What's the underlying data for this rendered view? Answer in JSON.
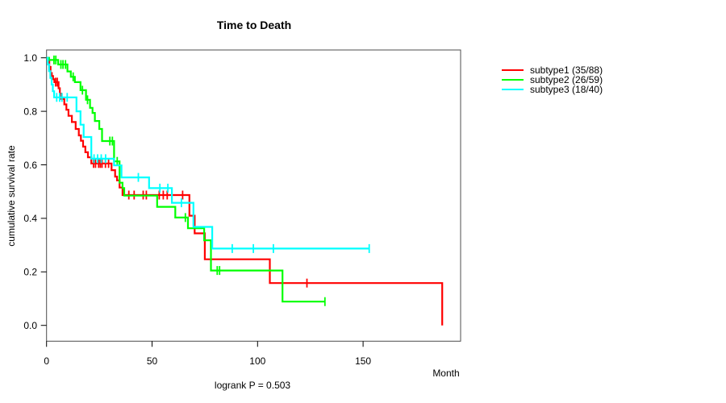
{
  "page": {
    "background": "#ffffff"
  },
  "chart_data": {
    "type": "line",
    "variant": "kaplan-meier-step",
    "title": "Time to Death",
    "xlabel": "Month",
    "ylabel": "cumulative survival rate",
    "annotation": "logrank P = 0.503",
    "x_ticks": [
      0,
      50,
      100,
      150
    ],
    "y_tick_labels": [
      "0.0",
      "0.2",
      "0.4",
      "0.6",
      "0.8",
      "1.0"
    ],
    "xlim": [
      0,
      196
    ],
    "ylim": [
      0,
      1
    ],
    "grid": false,
    "legend_position": "right-outside",
    "series": [
      {
        "name": "subtype1 (35/88)",
        "color": "#ff0000",
        "points": [
          [
            0,
            1
          ],
          [
            0.8,
            0.989
          ],
          [
            1.3,
            0.966
          ],
          [
            1.9,
            0.943
          ],
          [
            2.5,
            0.932
          ],
          [
            3.1,
            0.92
          ],
          [
            3.7,
            0.909
          ],
          [
            5.7,
            0.886
          ],
          [
            6.3,
            0.866
          ],
          [
            7,
            0.846
          ],
          [
            8.4,
            0.826
          ],
          [
            9.4,
            0.806
          ],
          [
            10.4,
            0.783
          ],
          [
            12,
            0.76
          ],
          [
            13.8,
            0.734
          ],
          [
            15.3,
            0.71
          ],
          [
            16.3,
            0.69
          ],
          [
            17.3,
            0.668
          ],
          [
            18.4,
            0.647
          ],
          [
            19.6,
            0.628
          ],
          [
            21.2,
            0.605
          ],
          [
            30.8,
            0.58
          ],
          [
            32.5,
            0.556
          ],
          [
            33.4,
            0.542
          ],
          [
            34.6,
            0.515
          ],
          [
            36,
            0.487
          ],
          [
            67.7,
            0.41
          ],
          [
            70.2,
            0.344
          ],
          [
            75,
            0.247
          ],
          [
            105.8,
            0.158
          ],
          [
            187.5,
            0
          ]
        ],
        "censor_ticks": [
          [
            4.3,
            0.909
          ],
          [
            5.1,
            0.909
          ],
          [
            22.3,
            0.605
          ],
          [
            23.2,
            0.605
          ],
          [
            24.7,
            0.605
          ],
          [
            25.5,
            0.605
          ],
          [
            26.3,
            0.605
          ],
          [
            27.9,
            0.605
          ],
          [
            29.4,
            0.605
          ],
          [
            39,
            0.487
          ],
          [
            41.5,
            0.487
          ],
          [
            45.8,
            0.487
          ],
          [
            47.3,
            0.487
          ],
          [
            53.4,
            0.487
          ],
          [
            55.3,
            0.487
          ],
          [
            57.2,
            0.487
          ],
          [
            64.5,
            0.487
          ],
          [
            123.4,
            0.158
          ]
        ],
        "end_month": 187.5
      },
      {
        "name": "subtype2 (26/59)",
        "color": "#00ff00",
        "points": [
          [
            0,
            1
          ],
          [
            1.2,
            0.992
          ],
          [
            5.5,
            0.975
          ],
          [
            9.9,
            0.949
          ],
          [
            11.5,
            0.929
          ],
          [
            13.4,
            0.909
          ],
          [
            16.1,
            0.879
          ],
          [
            18.7,
            0.843
          ],
          [
            20.6,
            0.813
          ],
          [
            21.8,
            0.794
          ],
          [
            22.9,
            0.764
          ],
          [
            25,
            0.734
          ],
          [
            26.3,
            0.689
          ],
          [
            32,
            0.613
          ],
          [
            34.6,
            0.533
          ],
          [
            36,
            0.513
          ],
          [
            36.8,
            0.485
          ],
          [
            52.4,
            0.443
          ],
          [
            61,
            0.403
          ],
          [
            67,
            0.363
          ],
          [
            74.7,
            0.318
          ],
          [
            77.9,
            0.205
          ],
          [
            111.8,
            0.089
          ]
        ],
        "censor_ticks": [
          [
            3.5,
            0.992
          ],
          [
            4.4,
            0.992
          ],
          [
            6.8,
            0.975
          ],
          [
            7.8,
            0.975
          ],
          [
            9,
            0.975
          ],
          [
            12.6,
            0.929
          ],
          [
            17,
            0.879
          ],
          [
            19.4,
            0.843
          ],
          [
            30,
            0.689
          ],
          [
            31.2,
            0.689
          ],
          [
            33.5,
            0.613
          ],
          [
            65.8,
            0.403
          ],
          [
            80.9,
            0.205
          ],
          [
            82,
            0.205
          ],
          [
            131.9,
            0.089
          ]
        ],
        "end_month": 131.9
      },
      {
        "name": "subtype3 (18/40)",
        "color": "#00ffff",
        "points": [
          [
            0,
            1
          ],
          [
            0.6,
            0.975
          ],
          [
            1.2,
            0.95
          ],
          [
            1.8,
            0.925
          ],
          [
            2.4,
            0.9
          ],
          [
            3,
            0.875
          ],
          [
            3.6,
            0.852
          ],
          [
            14.2,
            0.8
          ],
          [
            16.1,
            0.75
          ],
          [
            17.6,
            0.704
          ],
          [
            21.2,
            0.623
          ],
          [
            32,
            0.598
          ],
          [
            35.5,
            0.553
          ],
          [
            48.6,
            0.513
          ],
          [
            59.4,
            0.458
          ],
          [
            69.6,
            0.368
          ],
          [
            78.5,
            0.287
          ]
        ],
        "censor_ticks": [
          [
            4.8,
            0.852
          ],
          [
            6.2,
            0.852
          ],
          [
            7.3,
            0.852
          ],
          [
            9.8,
            0.852
          ],
          [
            22.5,
            0.623
          ],
          [
            24.2,
            0.623
          ],
          [
            25.9,
            0.623
          ],
          [
            28,
            0.623
          ],
          [
            43.5,
            0.553
          ],
          [
            53.7,
            0.513
          ],
          [
            57.5,
            0.513
          ],
          [
            63.9,
            0.458
          ],
          [
            88,
            0.287
          ],
          [
            98,
            0.287
          ],
          [
            107.5,
            0.287
          ],
          [
            152.9,
            0.287
          ]
        ],
        "end_month": 152.9
      }
    ]
  }
}
